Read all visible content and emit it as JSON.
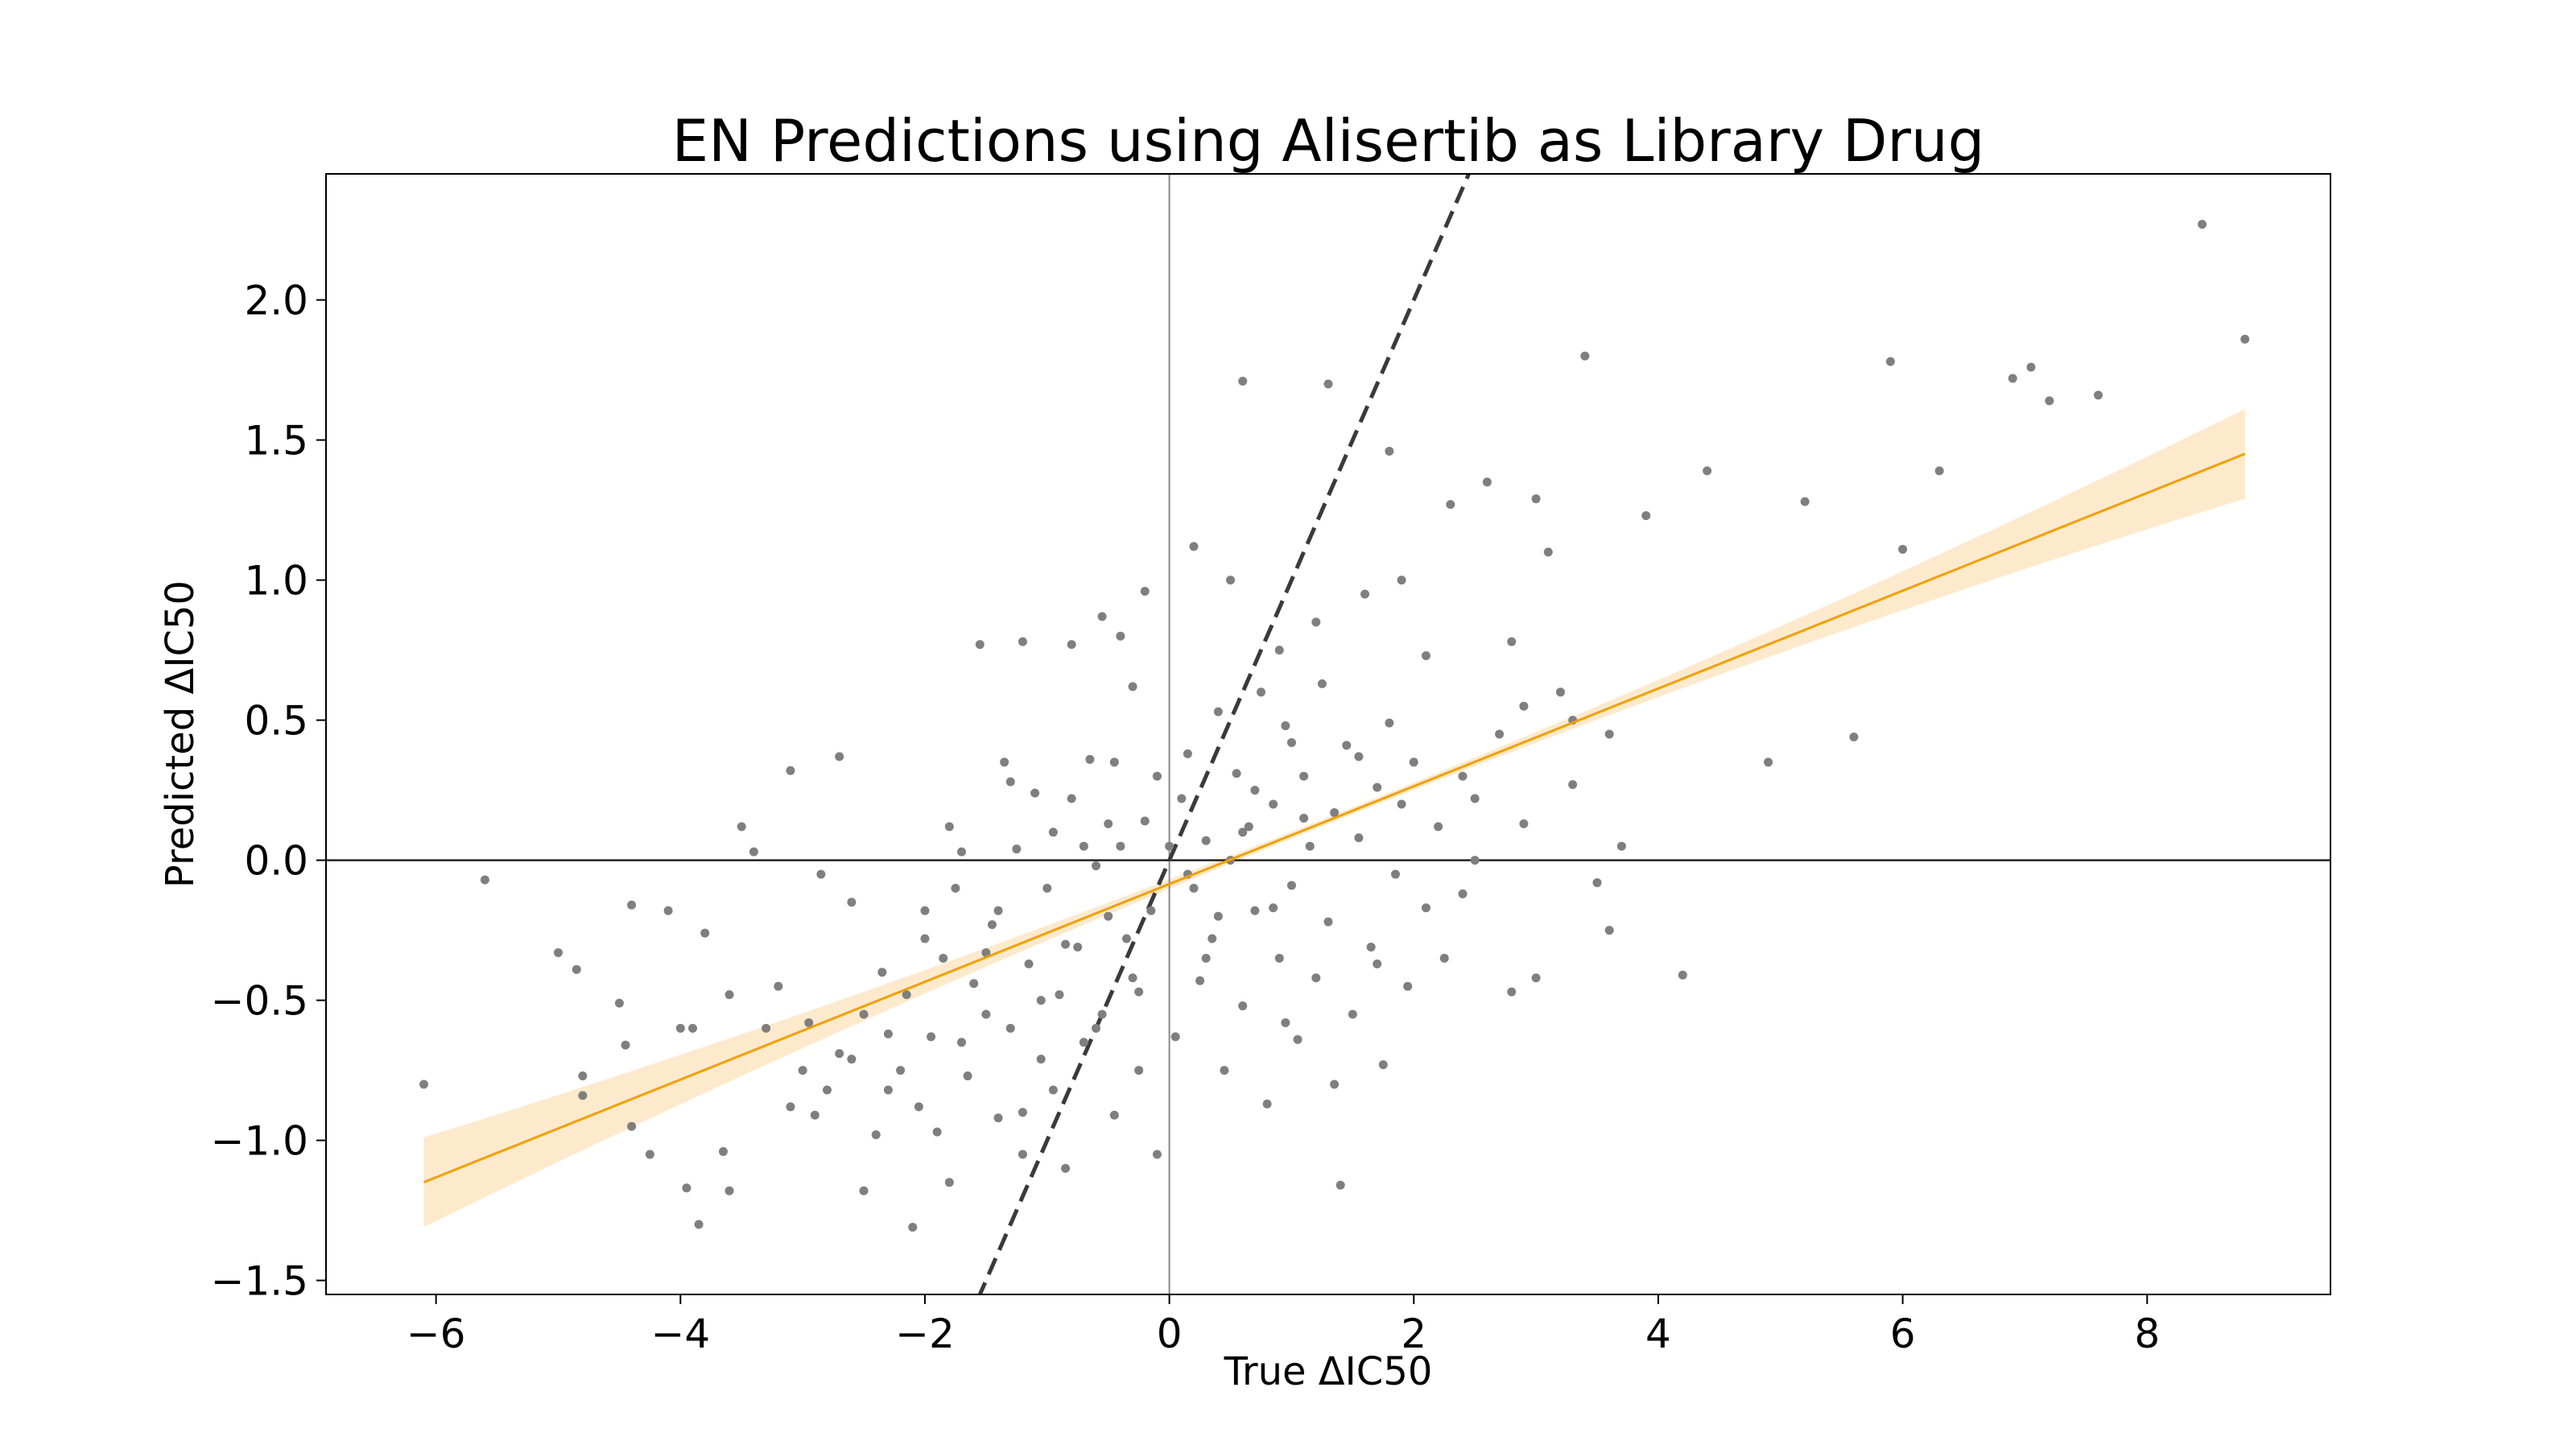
{
  "chart_data": {
    "type": "scatter",
    "title": "EN Predictions using Alisertib as Library Drug",
    "xlabel": "True ΔIC50",
    "ylabel": "Predicted ΔIC50",
    "xlim": [
      -6.9,
      9.5
    ],
    "ylim": [
      -1.55,
      2.45
    ],
    "x_ticks": [
      -6,
      -4,
      -2,
      0,
      2,
      4,
      6,
      8
    ],
    "x_tick_labels": [
      "−6",
      "−4",
      "−2",
      "0",
      "2",
      "4",
      "6",
      "8"
    ],
    "y_ticks": [
      -1.5,
      -1.0,
      -0.5,
      0.0,
      0.5,
      1.0,
      1.5,
      2.0
    ],
    "y_tick_labels": [
      "−1.5",
      "−1.0",
      "−0.5",
      "0.0",
      "0.5",
      "1.0",
      "1.5",
      "2.0"
    ],
    "grid": false,
    "reference_lines": {
      "x_zero": true,
      "y_zero": true,
      "identity_dashed": {
        "slope": 1,
        "intercept": 0
      }
    },
    "regression": {
      "x_range": [
        -6.1,
        8.8
      ],
      "slope": 0.1745,
      "intercept": -0.085,
      "ci_halfwidth_center": 0.012,
      "ci_halfwidth_ends": 0.16
    },
    "points": [
      [
        -6.1,
        -0.8
      ],
      [
        -5.6,
        -0.07
      ],
      [
        -5.0,
        -0.33
      ],
      [
        -4.85,
        -0.39
      ],
      [
        -4.8,
        -0.77
      ],
      [
        -4.8,
        -0.84
      ],
      [
        -4.5,
        -0.51
      ],
      [
        -4.45,
        -0.66
      ],
      [
        -4.4,
        -0.95
      ],
      [
        -4.25,
        -1.05
      ],
      [
        -4.1,
        -0.18
      ],
      [
        -4.0,
        -0.6
      ],
      [
        -3.95,
        -1.17
      ],
      [
        -3.9,
        -0.6
      ],
      [
        -3.85,
        -1.3
      ],
      [
        -3.65,
        -1.04
      ],
      [
        -3.6,
        -1.18
      ],
      [
        -3.5,
        0.12
      ],
      [
        -3.4,
        0.03
      ],
      [
        -3.3,
        -0.6
      ],
      [
        -3.2,
        -0.45
      ],
      [
        -3.1,
        -0.88
      ],
      [
        -3.0,
        -0.75
      ],
      [
        -2.95,
        -0.58
      ],
      [
        -2.9,
        -0.91
      ],
      [
        -2.8,
        -0.82
      ],
      [
        -2.7,
        -0.69
      ],
      [
        -2.6,
        -0.71
      ],
      [
        -2.5,
        -1.18
      ],
      [
        -2.4,
        -0.98
      ],
      [
        -2.35,
        -0.4
      ],
      [
        -2.3,
        -0.62
      ],
      [
        -2.2,
        -0.75
      ],
      [
        -2.15,
        -0.48
      ],
      [
        -2.1,
        -1.31
      ],
      [
        -2.05,
        -0.88
      ],
      [
        -2.0,
        -0.18
      ],
      [
        -1.95,
        -0.63
      ],
      [
        -1.9,
        -0.97
      ],
      [
        -1.85,
        -0.35
      ],
      [
        -1.8,
        -1.15
      ],
      [
        -1.75,
        -0.1
      ],
      [
        -1.7,
        0.03
      ],
      [
        -1.65,
        -0.77
      ],
      [
        -1.6,
        -0.44
      ],
      [
        -1.55,
        0.77
      ],
      [
        -1.5,
        -0.55
      ],
      [
        -1.45,
        -0.23
      ],
      [
        -1.4,
        -0.92
      ],
      [
        -1.35,
        0.35
      ],
      [
        -1.3,
        -0.6
      ],
      [
        -1.25,
        0.04
      ],
      [
        -1.2,
        -1.05
      ],
      [
        -1.15,
        -0.37
      ],
      [
        -1.1,
        0.24
      ],
      [
        -1.05,
        -0.71
      ],
      [
        -1.0,
        -0.1
      ],
      [
        -0.95,
        -0.82
      ],
      [
        -0.9,
        -0.48
      ],
      [
        -0.85,
        -1.1
      ],
      [
        -0.8,
        0.22
      ],
      [
        -0.75,
        -0.31
      ],
      [
        -0.7,
        -0.65
      ],
      [
        -0.65,
        0.36
      ],
      [
        -0.6,
        -0.02
      ],
      [
        -0.55,
        -0.55
      ],
      [
        -0.5,
        0.13
      ],
      [
        -0.45,
        -0.91
      ],
      [
        -0.4,
        0.05
      ],
      [
        -0.35,
        -0.28
      ],
      [
        -0.3,
        0.62
      ],
      [
        -0.25,
        -0.47
      ],
      [
        -0.2,
        0.14
      ],
      [
        -0.15,
        -0.18
      ],
      [
        -0.1,
        -1.05
      ],
      [
        0.05,
        -0.63
      ],
      [
        0.1,
        0.22
      ],
      [
        0.15,
        0.38
      ],
      [
        0.2,
        -0.1
      ],
      [
        0.25,
        -0.43
      ],
      [
        0.3,
        0.07
      ],
      [
        0.35,
        -0.28
      ],
      [
        0.4,
        0.53
      ],
      [
        0.45,
        -0.75
      ],
      [
        0.5,
        0.0
      ],
      [
        0.55,
        0.31
      ],
      [
        0.6,
        -0.52
      ],
      [
        0.65,
        0.12
      ],
      [
        0.7,
        -0.18
      ],
      [
        0.75,
        0.6
      ],
      [
        0.8,
        -0.87
      ],
      [
        0.85,
        0.2
      ],
      [
        0.9,
        -0.35
      ],
      [
        0.95,
        0.48
      ],
      [
        1.0,
        -0.09
      ],
      [
        1.05,
        -0.64
      ],
      [
        1.1,
        0.3
      ],
      [
        1.15,
        0.05
      ],
      [
        1.2,
        -0.42
      ],
      [
        1.25,
        0.63
      ],
      [
        1.3,
        -0.22
      ],
      [
        1.35,
        0.17
      ],
      [
        1.4,
        -1.16
      ],
      [
        1.45,
        0.41
      ],
      [
        1.5,
        -0.55
      ],
      [
        1.55,
        0.08
      ],
      [
        1.6,
        0.95
      ],
      [
        1.65,
        -0.31
      ],
      [
        1.7,
        0.26
      ],
      [
        1.75,
        -0.73
      ],
      [
        1.8,
        0.49
      ],
      [
        1.85,
        -0.05
      ],
      [
        1.9,
        1.0
      ],
      [
        1.95,
        -0.45
      ],
      [
        2.0,
        0.35
      ],
      [
        2.1,
        -0.17
      ],
      [
        2.2,
        0.12
      ],
      [
        2.3,
        1.27
      ],
      [
        2.4,
        -0.12
      ],
      [
        2.5,
        0.22
      ],
      [
        2.6,
        1.35
      ],
      [
        2.7,
        0.45
      ],
      [
        2.8,
        -0.47
      ],
      [
        2.9,
        0.13
      ],
      [
        3.0,
        -0.42
      ],
      [
        3.1,
        1.1
      ],
      [
        3.2,
        0.6
      ],
      [
        3.3,
        0.27
      ],
      [
        3.4,
        1.8
      ],
      [
        3.5,
        -0.08
      ],
      [
        3.6,
        -0.25
      ],
      [
        3.7,
        0.05
      ],
      [
        3.9,
        1.23
      ],
      [
        4.2,
        -0.41
      ],
      [
        4.4,
        1.39
      ],
      [
        4.9,
        0.35
      ],
      [
        5.2,
        1.28
      ],
      [
        5.6,
        0.44
      ],
      [
        5.9,
        1.78
      ],
      [
        6.0,
        1.11
      ],
      [
        6.3,
        1.39
      ],
      [
        6.9,
        1.72
      ],
      [
        7.05,
        1.76
      ],
      [
        7.2,
        1.64
      ],
      [
        7.6,
        1.66
      ],
      [
        8.45,
        2.27
      ],
      [
        8.8,
        1.86
      ],
      [
        0.6,
        1.71
      ],
      [
        1.3,
        1.7
      ],
      [
        1.8,
        1.46
      ],
      [
        -0.4,
        0.8
      ],
      [
        -0.55,
        0.87
      ],
      [
        -0.8,
        0.77
      ],
      [
        -1.2,
        0.78
      ],
      [
        -0.2,
        0.96
      ],
      [
        0.2,
        1.12
      ],
      [
        0.5,
        1.0
      ],
      [
        0.9,
        0.75
      ],
      [
        1.2,
        0.85
      ],
      [
        2.1,
        0.73
      ],
      [
        2.8,
        0.78
      ],
      [
        3.0,
        1.29
      ],
      [
        -2.7,
        0.37
      ],
      [
        -3.1,
        0.32
      ],
      [
        -2.3,
        -0.82
      ],
      [
        -1.2,
        -0.9
      ],
      [
        -0.6,
        -0.6
      ],
      [
        0.4,
        -0.2
      ],
      [
        1.1,
        0.15
      ],
      [
        -1.5,
        -0.33
      ],
      [
        -2.0,
        -0.28
      ],
      [
        -0.3,
        -0.42
      ],
      [
        0.7,
        0.25
      ],
      [
        1.55,
        0.37
      ],
      [
        -0.95,
        0.1
      ],
      [
        -1.8,
        0.12
      ],
      [
        0.85,
        -0.17
      ],
      [
        -0.1,
        0.3
      ],
      [
        1.0,
        0.42
      ],
      [
        -1.4,
        -0.18
      ],
      [
        -2.6,
        -0.15
      ],
      [
        -3.6,
        -0.48
      ],
      [
        -4.4,
        -0.16
      ],
      [
        -0.5,
        -0.2
      ],
      [
        0.3,
        -0.35
      ],
      [
        1.7,
        -0.37
      ],
      [
        2.5,
        0.0
      ],
      [
        -1.05,
        -0.5
      ],
      [
        -1.7,
        -0.65
      ],
      [
        0.0,
        0.05
      ],
      [
        0.6,
        0.1
      ],
      [
        -0.7,
        0.05
      ],
      [
        1.35,
        -0.8
      ],
      [
        -2.85,
        -0.05
      ],
      [
        -3.8,
        -0.26
      ],
      [
        -0.25,
        -0.75
      ],
      [
        0.95,
        -0.58
      ],
      [
        1.9,
        0.2
      ],
      [
        2.25,
        -0.35
      ],
      [
        -0.45,
        0.35
      ],
      [
        0.15,
        -0.05
      ],
      [
        -1.3,
        0.28
      ],
      [
        -2.5,
        -0.55
      ],
      [
        3.6,
        0.45
      ],
      [
        3.3,
        0.5
      ],
      [
        2.9,
        0.55
      ],
      [
        2.4,
        0.3
      ],
      [
        -0.85,
        -0.3
      ]
    ]
  }
}
